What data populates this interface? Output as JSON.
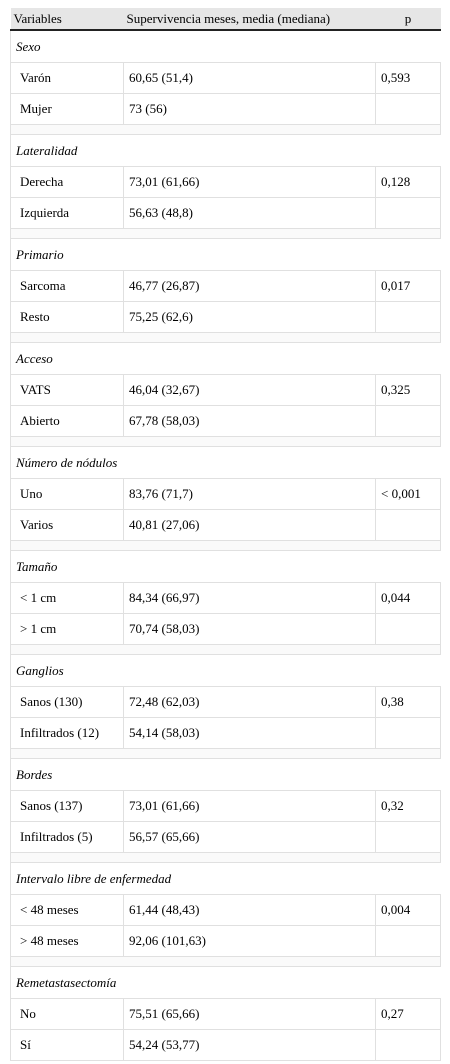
{
  "table": {
    "header": [
      "Variables",
      "Supervivencia meses, media (mediana)",
      "p"
    ],
    "groups": [
      {
        "title": "Sexo",
        "rows": [
          [
            "Varón",
            "60,65 (51,4)",
            "0,593"
          ],
          [
            "Mujer",
            "73 (56)"
          ]
        ]
      },
      {
        "title": "Lateralidad",
        "rows": [
          [
            "Derecha",
            "73,01 (61,66)",
            "0,128"
          ],
          [
            "Izquierda",
            "56,63 (48,8)"
          ]
        ]
      },
      {
        "title": "Primario",
        "rows": [
          [
            "Sarcoma",
            "46,77 (26,87)",
            "0,017"
          ],
          [
            "Resto",
            "75,25 (62,6)"
          ]
        ]
      },
      {
        "title": "Acceso",
        "rows": [
          [
            "VATS",
            "46,04 (32,67)",
            "0,325"
          ],
          [
            "Abierto",
            "67,78 (58,03)"
          ]
        ]
      },
      {
        "title": "Número de nódulos",
        "rows": [
          [
            "Uno",
            "83,76 (71,7)",
            "< 0,001"
          ],
          [
            "Varios",
            "40,81 (27,06)"
          ]
        ]
      },
      {
        "title": "Tamaño",
        "rows": [
          [
            "< 1 cm",
            "84,34 (66,97)",
            "0,044"
          ],
          [
            "> 1 cm",
            "70,74 (58,03)"
          ]
        ]
      },
      {
        "title": "Ganglios",
        "rows": [
          [
            "Sanos (130)",
            "72,48 (62,03)",
            "0,38"
          ],
          [
            "Infiltrados (12)",
            "54,14 (58,03)"
          ]
        ]
      },
      {
        "title": "Bordes",
        "rows": [
          [
            "Sanos (137)",
            "73,01 (61,66)",
            "0,32"
          ],
          [
            "Infiltrados (5)",
            "56,57 (65,66)"
          ]
        ]
      },
      {
        "title": "Intervalo libre de enfermedad",
        "rows": [
          [
            "< 48 meses",
            "61,44 (48,43)",
            "0,004"
          ],
          [
            "> 48 meses",
            "92,06 (101,63)"
          ]
        ]
      },
      {
        "title": "Remetastasectomía",
        "rows": [
          [
            "No",
            "75,51 (65,66)",
            "0,27"
          ],
          [
            "Sí",
            "54,24 (53,77)"
          ]
        ]
      }
    ]
  }
}
